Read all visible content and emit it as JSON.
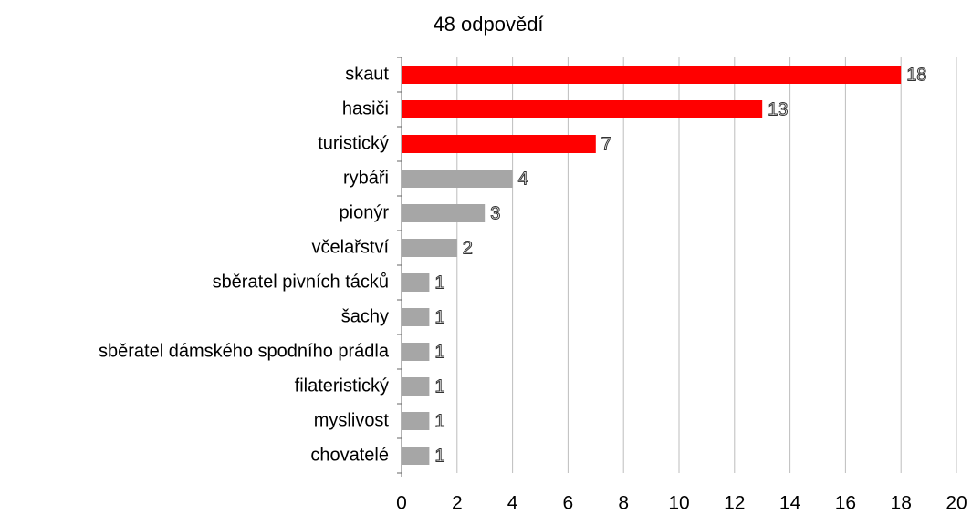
{
  "chart_data": {
    "type": "bar",
    "orientation": "horizontal",
    "title": "48 odpovědí",
    "categories": [
      "skaut",
      "hasiči",
      "turistický",
      "rybáři",
      "pionýr",
      "včelařství",
      "sběratel pivních tácků",
      "šachy",
      "sběratel dámského spodního prádla",
      "filateristický",
      "myslivost",
      "chovatelé"
    ],
    "values": [
      18,
      13,
      7,
      4,
      3,
      2,
      1,
      1,
      1,
      1,
      1,
      1
    ],
    "colors": [
      "#ff0000",
      "#ff0000",
      "#ff0000",
      "#a6a6a6",
      "#a6a6a6",
      "#a6a6a6",
      "#a6a6a6",
      "#a6a6a6",
      "#a6a6a6",
      "#a6a6a6",
      "#a6a6a6",
      "#a6a6a6"
    ],
    "xlim": [
      0,
      20
    ],
    "xticks": [
      0,
      2,
      4,
      6,
      8,
      10,
      12,
      14,
      16,
      18,
      20
    ],
    "grid": true
  }
}
